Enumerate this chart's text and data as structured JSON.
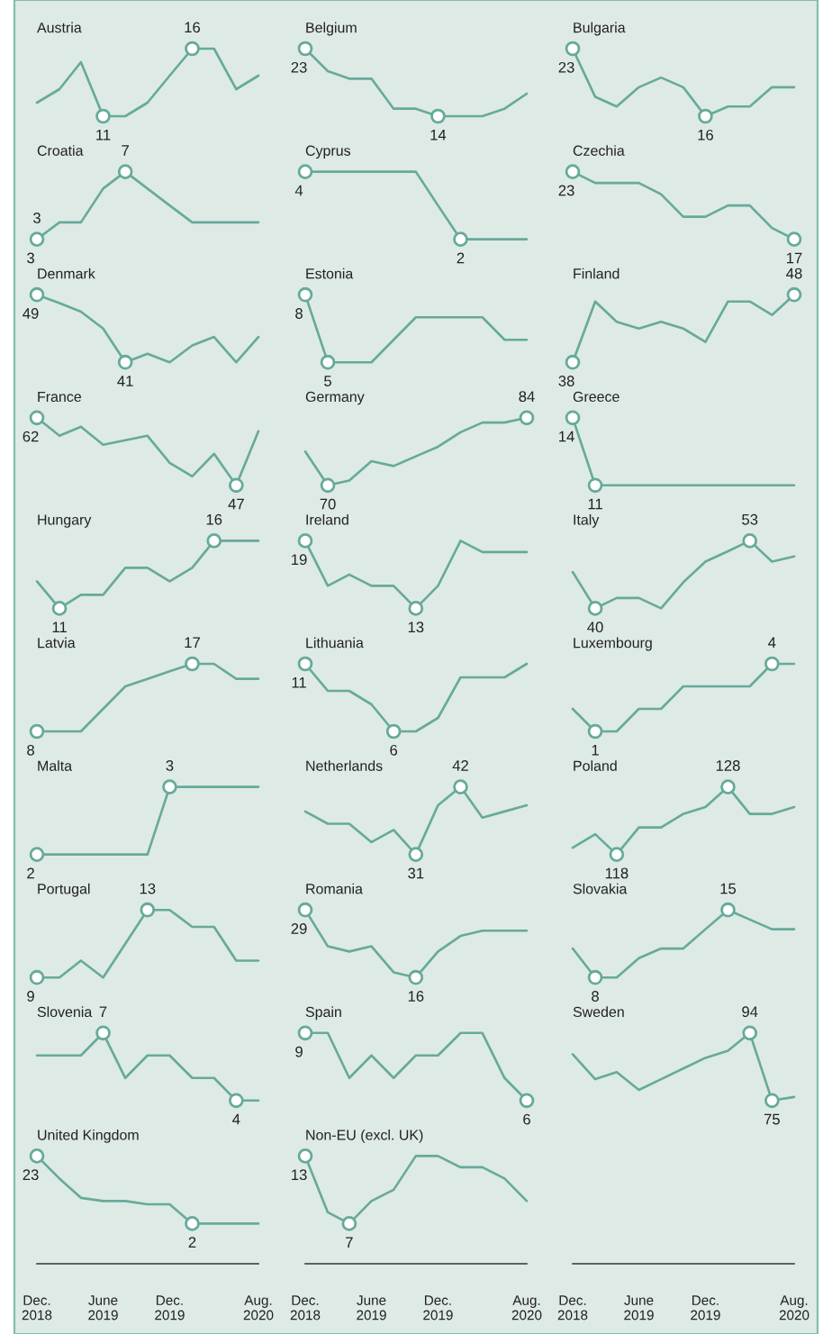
{
  "chart_data": [
    {
      "type": "line",
      "title": "Austria",
      "x": [
        "2018-12",
        "2019-02",
        "2019-04",
        "2019-06",
        "2019-08",
        "2019-10",
        "2019-12",
        "2020-02",
        "2020-04",
        "2020-06",
        "2020-08"
      ],
      "values": [
        12,
        13,
        15,
        11,
        11,
        12,
        14,
        16,
        16,
        13,
        14
      ],
      "value_labels": [
        null,
        null,
        null,
        "11",
        null,
        null,
        null,
        "16",
        null,
        null,
        null
      ],
      "color": "#66aa9a",
      "xlim": [
        "2018-12",
        "2020-08"
      ],
      "tick_labels": false
    },
    {
      "type": "line",
      "title": "Belgium",
      "x": [
        "2018-12",
        "2019-02",
        "2019-04",
        "2019-06",
        "2019-08",
        "2019-10",
        "2019-12",
        "2020-02",
        "2020-04",
        "2020-06",
        "2020-08"
      ],
      "values": [
        23,
        20,
        19,
        19,
        15,
        15,
        14,
        14,
        14,
        15,
        17
      ],
      "value_labels": [
        "23",
        null,
        null,
        null,
        null,
        null,
        "14",
        null,
        null,
        null,
        null
      ],
      "color": "#66aa9a",
      "xlim": [
        "2018-12",
        "2020-08"
      ],
      "tick_labels": false
    },
    {
      "type": "line",
      "title": "Bulgaria",
      "x": [
        "2018-12",
        "2019-02",
        "2019-04",
        "2019-06",
        "2019-08",
        "2019-10",
        "2019-12",
        "2020-02",
        "2020-04",
        "2020-06",
        "2020-08"
      ],
      "values": [
        23,
        18,
        17,
        19,
        20,
        19,
        16,
        17,
        17,
        19,
        19
      ],
      "value_labels": [
        "23",
        null,
        null,
        null,
        null,
        null,
        "16",
        null,
        null,
        null,
        null
      ],
      "color": "#66aa9a",
      "xlim": [
        "2018-12",
        "2020-08"
      ],
      "tick_labels": false
    },
    {
      "type": "line",
      "title": "Croatia",
      "x": [
        "2018-12",
        "2019-02",
        "2019-04",
        "2019-06",
        "2019-08",
        "2019-10",
        "2019-12",
        "2020-02",
        "2020-04",
        "2020-06",
        "2020-08"
      ],
      "values": [
        3,
        4,
        4,
        6,
        7,
        6,
        5,
        4,
        4,
        4,
        4
      ],
      "value_labels": [
        "3",
        null,
        null,
        null,
        "7",
        null,
        null,
        null,
        null,
        null,
        null
      ],
      "annotations": [
        {
          "text": "3",
          "x": "2018-12",
          "y": 3
        }
      ],
      "color": "#66aa9a",
      "xlim": [
        "2018-12",
        "2020-08"
      ],
      "tick_labels": false
    },
    {
      "type": "line",
      "title": "Cyprus",
      "x": [
        "2018-12",
        "2019-02",
        "2019-04",
        "2019-06",
        "2019-08",
        "2019-10",
        "2019-12",
        "2020-02",
        "2020-04",
        "2020-06",
        "2020-08"
      ],
      "values": [
        4,
        4,
        4,
        4,
        4,
        4,
        3,
        2,
        2,
        2,
        2
      ],
      "value_labels": [
        "4",
        null,
        null,
        null,
        null,
        null,
        null,
        "2",
        null,
        null,
        null
      ],
      "color": "#66aa9a",
      "xlim": [
        "2018-12",
        "2020-08"
      ],
      "tick_labels": false
    },
    {
      "type": "line",
      "title": "Czechia",
      "x": [
        "2018-12",
        "2019-02",
        "2019-04",
        "2019-06",
        "2019-08",
        "2019-10",
        "2019-12",
        "2020-02",
        "2020-04",
        "2020-06",
        "2020-08"
      ],
      "values": [
        23,
        22,
        22,
        22,
        21,
        19,
        19,
        20,
        20,
        18,
        17
      ],
      "value_labels": [
        "23",
        null,
        null,
        null,
        null,
        null,
        null,
        null,
        null,
        null,
        "17"
      ],
      "color": "#66aa9a",
      "xlim": [
        "2018-12",
        "2020-08"
      ],
      "tick_labels": false
    },
    {
      "type": "line",
      "title": "Denmark",
      "x": [
        "2018-12",
        "2019-02",
        "2019-04",
        "2019-06",
        "2019-08",
        "2019-10",
        "2019-12",
        "2020-02",
        "2020-04",
        "2020-06",
        "2020-08"
      ],
      "values": [
        49,
        48,
        47,
        45,
        41,
        42,
        41,
        43,
        44,
        41,
        44
      ],
      "value_labels": [
        "49",
        null,
        null,
        null,
        "41",
        null,
        null,
        null,
        null,
        null,
        null
      ],
      "color": "#66aa9a",
      "xlim": [
        "2018-12",
        "2020-08"
      ],
      "tick_labels": false
    },
    {
      "type": "line",
      "title": "Estonia",
      "x": [
        "2018-12",
        "2019-02",
        "2019-04",
        "2019-06",
        "2019-08",
        "2019-10",
        "2019-12",
        "2020-02",
        "2020-04",
        "2020-06",
        "2020-08"
      ],
      "values": [
        8,
        5,
        5,
        5,
        6,
        7,
        7,
        7,
        7,
        6,
        6
      ],
      "value_labels": [
        "8",
        "5",
        null,
        null,
        null,
        null,
        null,
        null,
        null,
        null,
        null
      ],
      "color": "#66aa9a",
      "xlim": [
        "2018-12",
        "2020-08"
      ],
      "tick_labels": false
    },
    {
      "type": "line",
      "title": "Finland",
      "x": [
        "2018-12",
        "2019-02",
        "2019-04",
        "2019-06",
        "2019-08",
        "2019-10",
        "2019-12",
        "2020-02",
        "2020-04",
        "2020-06",
        "2020-08"
      ],
      "values": [
        38,
        47,
        44,
        43,
        44,
        43,
        41,
        47,
        47,
        45,
        48
      ],
      "value_labels": [
        "38",
        null,
        null,
        null,
        null,
        null,
        null,
        null,
        null,
        null,
        "48"
      ],
      "color": "#66aa9a",
      "xlim": [
        "2018-12",
        "2020-08"
      ],
      "tick_labels": false
    },
    {
      "type": "line",
      "title": "France",
      "x": [
        "2018-12",
        "2019-02",
        "2019-04",
        "2019-06",
        "2019-08",
        "2019-10",
        "2019-12",
        "2020-02",
        "2020-04",
        "2020-06",
        "2020-08"
      ],
      "values": [
        62,
        58,
        60,
        56,
        57,
        58,
        52,
        49,
        54,
        47,
        59
      ],
      "value_labels": [
        "62",
        null,
        null,
        null,
        null,
        null,
        null,
        null,
        null,
        "47",
        null
      ],
      "color": "#66aa9a",
      "xlim": [
        "2018-12",
        "2020-08"
      ],
      "tick_labels": false
    },
    {
      "type": "line",
      "title": "Germany",
      "x": [
        "2018-12",
        "2019-02",
        "2019-04",
        "2019-06",
        "2019-08",
        "2019-10",
        "2019-12",
        "2020-02",
        "2020-04",
        "2020-06",
        "2020-08"
      ],
      "values": [
        77,
        70,
        71,
        75,
        74,
        76,
        78,
        81,
        83,
        83,
        84
      ],
      "value_labels": [
        null,
        "70",
        null,
        null,
        null,
        null,
        null,
        null,
        null,
        null,
        "84"
      ],
      "color": "#66aa9a",
      "xlim": [
        "2018-12",
        "2020-08"
      ],
      "tick_labels": false
    },
    {
      "type": "line",
      "title": "Greece",
      "x": [
        "2018-12",
        "2019-02",
        "2019-04",
        "2019-06",
        "2019-08",
        "2019-10",
        "2019-12",
        "2020-02",
        "2020-04",
        "2020-06",
        "2020-08"
      ],
      "values": [
        14,
        11,
        11,
        11,
        11,
        11,
        11,
        11,
        11,
        11,
        11
      ],
      "value_labels": [
        "14",
        "11",
        null,
        null,
        null,
        null,
        null,
        null,
        null,
        null,
        null
      ],
      "color": "#66aa9a",
      "xlim": [
        "2018-12",
        "2020-08"
      ],
      "tick_labels": false
    },
    {
      "type": "line",
      "title": "Hungary",
      "x": [
        "2018-12",
        "2019-02",
        "2019-04",
        "2019-06",
        "2019-08",
        "2019-10",
        "2019-12",
        "2020-02",
        "2020-04",
        "2020-06",
        "2020-08"
      ],
      "values": [
        13,
        11,
        12,
        12,
        14,
        14,
        13,
        14,
        16,
        16,
        16
      ],
      "value_labels": [
        null,
        "11",
        null,
        null,
        null,
        null,
        null,
        null,
        "16",
        null,
        null
      ],
      "color": "#66aa9a",
      "xlim": [
        "2018-12",
        "2020-08"
      ],
      "tick_labels": false
    },
    {
      "type": "line",
      "title": "Ireland",
      "x": [
        "2018-12",
        "2019-02",
        "2019-04",
        "2019-06",
        "2019-08",
        "2019-10",
        "2019-12",
        "2020-02",
        "2020-04",
        "2020-06",
        "2020-08"
      ],
      "values": [
        19,
        15,
        16,
        15,
        15,
        13,
        15,
        19,
        18,
        18,
        18
      ],
      "value_labels": [
        "19",
        null,
        null,
        null,
        null,
        "13",
        null,
        null,
        null,
        null,
        null
      ],
      "color": "#66aa9a",
      "xlim": [
        "2018-12",
        "2020-08"
      ],
      "tick_labels": false
    },
    {
      "type": "line",
      "title": "Italy",
      "x": [
        "2018-12",
        "2019-02",
        "2019-04",
        "2019-06",
        "2019-08",
        "2019-10",
        "2019-12",
        "2020-02",
        "2020-04",
        "2020-06",
        "2020-08"
      ],
      "values": [
        47,
        40,
        42,
        42,
        40,
        45,
        49,
        51,
        53,
        49,
        50
      ],
      "value_labels": [
        null,
        "40",
        null,
        null,
        null,
        null,
        null,
        null,
        "53",
        null,
        null
      ],
      "color": "#66aa9a",
      "xlim": [
        "2018-12",
        "2020-08"
      ],
      "tick_labels": false
    },
    {
      "type": "line",
      "title": "Latvia",
      "x": [
        "2018-12",
        "2019-02",
        "2019-04",
        "2019-06",
        "2019-08",
        "2019-10",
        "2019-12",
        "2020-02",
        "2020-04",
        "2020-06",
        "2020-08"
      ],
      "values": [
        8,
        8,
        8,
        11,
        14,
        15,
        16,
        17,
        17,
        15,
        15
      ],
      "value_labels": [
        "8",
        null,
        null,
        null,
        null,
        null,
        null,
        "17",
        null,
        null,
        null
      ],
      "color": "#66aa9a",
      "xlim": [
        "2018-12",
        "2020-08"
      ],
      "tick_labels": false
    },
    {
      "type": "line",
      "title": "Lithuania",
      "x": [
        "2018-12",
        "2019-02",
        "2019-04",
        "2019-06",
        "2019-08",
        "2019-10",
        "2019-12",
        "2020-02",
        "2020-04",
        "2020-06",
        "2020-08"
      ],
      "values": [
        11,
        9,
        9,
        8,
        6,
        6,
        7,
        10,
        10,
        10,
        11
      ],
      "value_labels": [
        "11",
        null,
        null,
        null,
        "6",
        null,
        null,
        null,
        null,
        null,
        null
      ],
      "color": "#66aa9a",
      "xlim": [
        "2018-12",
        "2020-08"
      ],
      "tick_labels": false
    },
    {
      "type": "line",
      "title": "Luxembourg",
      "x": [
        "2018-12",
        "2019-02",
        "2019-04",
        "2019-06",
        "2019-08",
        "2019-10",
        "2019-12",
        "2020-02",
        "2020-04",
        "2020-06",
        "2020-08"
      ],
      "values": [
        2,
        1,
        1,
        2,
        2,
        3,
        3,
        3,
        3,
        4,
        4
      ],
      "value_labels": [
        null,
        "1",
        null,
        null,
        null,
        null,
        null,
        null,
        null,
        "4",
        null
      ],
      "color": "#66aa9a",
      "xlim": [
        "2018-12",
        "2020-08"
      ],
      "tick_labels": false
    },
    {
      "type": "line",
      "title": "Malta",
      "x": [
        "2018-12",
        "2019-02",
        "2019-04",
        "2019-06",
        "2019-08",
        "2019-10",
        "2019-12",
        "2020-02",
        "2020-04",
        "2020-06",
        "2020-08"
      ],
      "values": [
        2,
        2,
        2,
        2,
        2,
        2,
        3,
        3,
        3,
        3,
        3
      ],
      "value_labels": [
        "2",
        null,
        null,
        null,
        null,
        null,
        "3",
        null,
        null,
        null,
        null
      ],
      "color": "#66aa9a",
      "xlim": [
        "2018-12",
        "2020-08"
      ],
      "tick_labels": false
    },
    {
      "type": "line",
      "title": "Netherlands",
      "x": [
        "2018-12",
        "2019-02",
        "2019-04",
        "2019-06",
        "2019-08",
        "2019-10",
        "2019-12",
        "2020-02",
        "2020-04",
        "2020-06",
        "2020-08"
      ],
      "values": [
        38,
        36,
        36,
        33,
        35,
        31,
        39,
        42,
        37,
        38,
        39
      ],
      "value_labels": [
        null,
        null,
        null,
        null,
        null,
        "31",
        null,
        "42",
        null,
        null,
        null
      ],
      "color": "#66aa9a",
      "xlim": [
        "2018-12",
        "2020-08"
      ],
      "tick_labels": false
    },
    {
      "type": "line",
      "title": "Poland",
      "x": [
        "2018-12",
        "2019-02",
        "2019-04",
        "2019-06",
        "2019-08",
        "2019-10",
        "2019-12",
        "2020-02",
        "2020-04",
        "2020-06",
        "2020-08"
      ],
      "values": [
        119,
        121,
        118,
        122,
        122,
        124,
        125,
        128,
        124,
        124,
        125
      ],
      "value_labels": [
        null,
        null,
        "118",
        null,
        null,
        null,
        null,
        "128",
        null,
        null,
        null
      ],
      "color": "#66aa9a",
      "xlim": [
        "2018-12",
        "2020-08"
      ],
      "tick_labels": false
    },
    {
      "type": "line",
      "title": "Portugal",
      "x": [
        "2018-12",
        "2019-02",
        "2019-04",
        "2019-06",
        "2019-08",
        "2019-10",
        "2019-12",
        "2020-02",
        "2020-04",
        "2020-06",
        "2020-08"
      ],
      "values": [
        9,
        9,
        10,
        9,
        11,
        13,
        13,
        12,
        12,
        10,
        10
      ],
      "value_labels": [
        "9",
        null,
        null,
        null,
        null,
        "13",
        null,
        null,
        null,
        null,
        null
      ],
      "color": "#66aa9a",
      "xlim": [
        "2018-12",
        "2020-08"
      ],
      "tick_labels": false
    },
    {
      "type": "line",
      "title": "Romania",
      "x": [
        "2018-12",
        "2019-02",
        "2019-04",
        "2019-06",
        "2019-08",
        "2019-10",
        "2019-12",
        "2020-02",
        "2020-04",
        "2020-06",
        "2020-08"
      ],
      "values": [
        29,
        22,
        21,
        22,
        17,
        16,
        21,
        24,
        25,
        25,
        25
      ],
      "value_labels": [
        "29",
        null,
        null,
        null,
        null,
        "16",
        null,
        null,
        null,
        null,
        null
      ],
      "color": "#66aa9a",
      "xlim": [
        "2018-12",
        "2020-08"
      ],
      "tick_labels": false
    },
    {
      "type": "line",
      "title": "Slovakia",
      "x": [
        "2018-12",
        "2019-02",
        "2019-04",
        "2019-06",
        "2019-08",
        "2019-10",
        "2019-12",
        "2020-02",
        "2020-04",
        "2020-06",
        "2020-08"
      ],
      "values": [
        11,
        8,
        8,
        10,
        11,
        11,
        13,
        15,
        14,
        13,
        13
      ],
      "value_labels": [
        null,
        "8",
        null,
        null,
        null,
        null,
        null,
        "15",
        null,
        null,
        null
      ],
      "color": "#66aa9a",
      "xlim": [
        "2018-12",
        "2020-08"
      ],
      "tick_labels": false
    },
    {
      "type": "line",
      "title": "Slovenia",
      "x": [
        "2018-12",
        "2019-02",
        "2019-04",
        "2019-06",
        "2019-08",
        "2019-10",
        "2019-12",
        "2020-02",
        "2020-04",
        "2020-06",
        "2020-08"
      ],
      "values": [
        6,
        6,
        6,
        7,
        5,
        6,
        6,
        5,
        5,
        4,
        4
      ],
      "value_labels": [
        null,
        null,
        null,
        "7",
        null,
        null,
        null,
        null,
        null,
        "4",
        null
      ],
      "color": "#66aa9a",
      "xlim": [
        "2018-12",
        "2020-08"
      ],
      "tick_labels": false
    },
    {
      "type": "line",
      "title": "Spain",
      "x": [
        "2018-12",
        "2019-02",
        "2019-04",
        "2019-06",
        "2019-08",
        "2019-10",
        "2019-12",
        "2020-02",
        "2020-04",
        "2020-06",
        "2020-08"
      ],
      "values": [
        9,
        9,
        7,
        8,
        7,
        8,
        8,
        9,
        9,
        7,
        6
      ],
      "value_labels": [
        "9",
        null,
        null,
        null,
        null,
        null,
        null,
        null,
        null,
        null,
        "6"
      ],
      "color": "#66aa9a",
      "xlim": [
        "2018-12",
        "2020-08"
      ],
      "tick_labels": false
    },
    {
      "type": "line",
      "title": "Sweden",
      "x": [
        "2018-12",
        "2019-02",
        "2019-04",
        "2019-06",
        "2019-08",
        "2019-10",
        "2019-12",
        "2020-02",
        "2020-04",
        "2020-06",
        "2020-08"
      ],
      "values": [
        88,
        81,
        83,
        78,
        81,
        84,
        87,
        89,
        94,
        75,
        76
      ],
      "value_labels": [
        null,
        null,
        null,
        null,
        null,
        null,
        null,
        null,
        "94",
        "75",
        null
      ],
      "color": "#66aa9a",
      "xlim": [
        "2018-12",
        "2020-08"
      ],
      "xticks": [
        {
          "value": "2018-12",
          "label": "Dec.\n2018"
        },
        {
          "value": "2019-06",
          "label": "June\n2019"
        },
        {
          "value": "2019-12",
          "label": "Dec.\n2019"
        },
        {
          "value": "2020-08",
          "label": "Aug.\n2020"
        }
      ],
      "tick_labels": "x"
    },
    {
      "type": "line",
      "title": "United Kingdom",
      "x": [
        "2018-12",
        "2019-02",
        "2019-04",
        "2019-06",
        "2019-08",
        "2019-10",
        "2019-12",
        "2020-02",
        "2020-04",
        "2020-06",
        "2020-08"
      ],
      "values": [
        23,
        16,
        10,
        9,
        9,
        8,
        8,
        2,
        2,
        2,
        2
      ],
      "value_labels": [
        "23",
        null,
        null,
        null,
        null,
        null,
        null,
        "2",
        null,
        null,
        null
      ],
      "color": "#66aa9a",
      "xlim": [
        "2018-12",
        "2020-08"
      ],
      "xticks": [
        {
          "value": "2018-12",
          "label": "Dec.\n2018"
        },
        {
          "value": "2019-06",
          "label": "June\n2019"
        },
        {
          "value": "2019-12",
          "label": "Dec.\n2019"
        },
        {
          "value": "2020-08",
          "label": "Aug.\n2020"
        }
      ],
      "tick_labels": "x"
    },
    {
      "type": "line",
      "title": "Non-EU (excl. UK)",
      "x": [
        "2018-12",
        "2019-02",
        "2019-04",
        "2019-06",
        "2019-08",
        "2019-10",
        "2019-12",
        "2020-02",
        "2020-04",
        "2020-06",
        "2020-08"
      ],
      "values": [
        13,
        8,
        7,
        9,
        10,
        13,
        13,
        12,
        12,
        11,
        9
      ],
      "value_labels": [
        "13",
        null,
        "7",
        null,
        null,
        null,
        null,
        null,
        null,
        null,
        null
      ],
      "color": "#66aa9a",
      "xlim": [
        "2018-12",
        "2020-08"
      ],
      "xticks": [
        {
          "value": "2018-12",
          "label": "Dec.\n2018"
        },
        {
          "value": "2019-06",
          "label": "June\n2019"
        },
        {
          "value": "2019-12",
          "label": "Dec.\n2019"
        },
        {
          "value": "2020-08",
          "label": "Aug.\n2020"
        }
      ],
      "tick_labels": "x"
    }
  ]
}
